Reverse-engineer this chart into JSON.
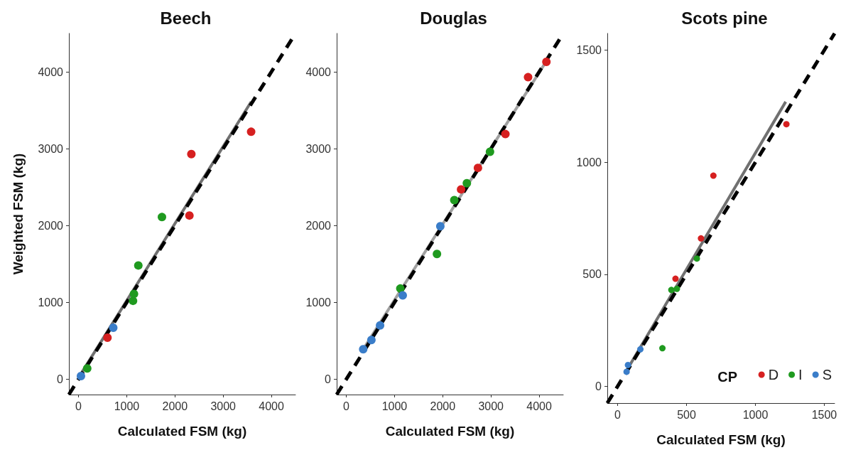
{
  "chart_data": [
    {
      "type": "scatter",
      "title": "Beech",
      "xlabel": "Calculated FSM (kg)",
      "ylabel": "Weighted FSM (kg)",
      "xlim": [
        -200,
        4500
      ],
      "ylim": [
        -200,
        4500
      ],
      "xticks": [
        0,
        1000,
        2000,
        3000,
        4000
      ],
      "yticks": [
        0,
        1000,
        2000,
        3000,
        4000
      ],
      "grid": false,
      "legend": false,
      "marker": "circle",
      "series": [
        {
          "type": "line",
          "marker": "none",
          "line_style": "solid",
          "color": "#707070",
          "x": [
            50,
            3580
          ],
          "values": [
            70,
            3610
          ]
        },
        {
          "type": "line",
          "marker": "none",
          "line_style": "dashed",
          "color": "#000000",
          "x": [
            -200,
            4500
          ],
          "values": [
            -200,
            4500
          ]
        },
        {
          "color": "#d62020",
          "x": [
            600,
            2300,
            2340,
            3580
          ],
          "values": [
            540,
            2130,
            2930,
            3220
          ]
        },
        {
          "color": "#1f9a1f",
          "x": [
            180,
            1130,
            1150,
            1240,
            1730
          ],
          "values": [
            140,
            1020,
            1110,
            1480,
            2110
          ]
        },
        {
          "color": "#3a7dc9",
          "x": [
            50,
            720
          ],
          "values": [
            40,
            670
          ]
        }
      ]
    },
    {
      "type": "scatter",
      "title": "Douglas",
      "xlabel": "Calculated FSM (kg)",
      "xlim": [
        -200,
        4500
      ],
      "ylim": [
        -200,
        4500
      ],
      "xticks": [
        0,
        1000,
        2000,
        3000,
        4000
      ],
      "yticks": [
        0,
        1000,
        2000,
        3000,
        4000
      ],
      "grid": false,
      "legend": false,
      "marker": "circle",
      "series": [
        {
          "type": "line",
          "marker": "none",
          "line_style": "solid",
          "color": "#a0a0a0",
          "x": [
            350,
            4130
          ],
          "values": [
            390,
            4120
          ]
        },
        {
          "type": "line",
          "marker": "none",
          "line_style": "dashed",
          "color": "#000000",
          "x": [
            -200,
            4500
          ],
          "values": [
            -200,
            4500
          ]
        },
        {
          "color": "#d62020",
          "x": [
            2380,
            2730,
            3300,
            3770,
            4150
          ],
          "values": [
            2470,
            2750,
            3190,
            3930,
            4130
          ]
        },
        {
          "color": "#1f9a1f",
          "x": [
            1120,
            1880,
            2240,
            2500,
            2980
          ],
          "values": [
            1180,
            1630,
            2330,
            2550,
            2960
          ]
        },
        {
          "color": "#3a7dc9",
          "x": [
            350,
            520,
            700,
            1170,
            1950
          ],
          "values": [
            390,
            510,
            700,
            1090,
            1990
          ]
        }
      ]
    },
    {
      "type": "scatter",
      "title": "Scots pine",
      "xlabel": "Calculated FSM (kg)",
      "legend_title": "CP",
      "xlim": [
        -75,
        1575
      ],
      "ylim": [
        -75,
        1575
      ],
      "xticks": [
        0,
        500,
        1000,
        1500
      ],
      "yticks": [
        0,
        500,
        1000,
        1500
      ],
      "grid": false,
      "legend": "bottom right",
      "marker": "circle",
      "series": [
        {
          "type": "line",
          "marker": "none",
          "line_style": "solid",
          "color": "#707070",
          "x": [
            60,
            1220
          ],
          "values": [
            65,
            1270
          ]
        },
        {
          "type": "line",
          "marker": "none",
          "line_style": "dashed",
          "color": "#000000",
          "x": [
            -75,
            1575
          ],
          "values": [
            -75,
            1575
          ]
        },
        {
          "name": "D",
          "color": "#d62020",
          "x": [
            420,
            605,
            695,
            1225
          ],
          "values": [
            480,
            660,
            940,
            1170
          ]
        },
        {
          "name": "I",
          "color": "#1f9a1f",
          "x": [
            325,
            390,
            430,
            575
          ],
          "values": [
            170,
            430,
            435,
            570
          ]
        },
        {
          "name": "S",
          "color": "#3a7dc9",
          "x": [
            65,
            75,
            165
          ],
          "values": [
            65,
            95,
            165
          ]
        }
      ]
    }
  ]
}
